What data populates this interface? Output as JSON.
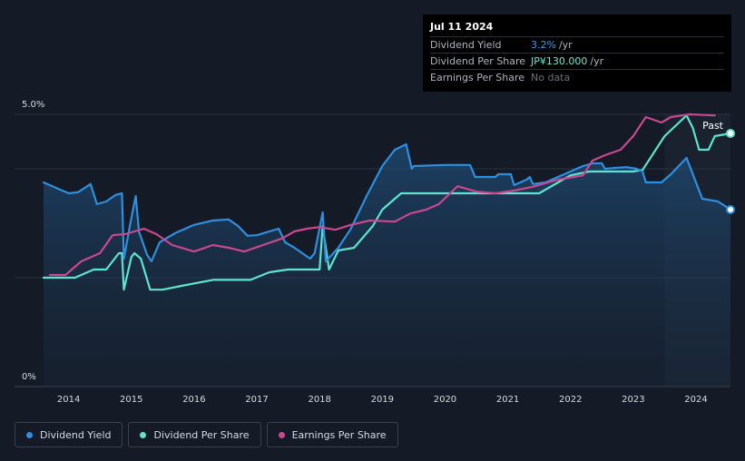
{
  "tooltip": {
    "date": "Jul 11 2024",
    "rows": [
      {
        "label": "Dividend Yield",
        "value": "3.2%",
        "unit": "/yr"
      },
      {
        "label": "Dividend Per Share",
        "value": "JP¥130.000",
        "unit": "/yr"
      },
      {
        "label": "Earnings Per Share",
        "value": "No data",
        "unit": ""
      }
    ]
  },
  "legend": [
    {
      "label": "Dividend Yield",
      "color": "#2e8fe0"
    },
    {
      "label": "Dividend Per Share",
      "color": "#5ee3cf"
    },
    {
      "label": "Earnings Per Share",
      "color": "#c9488f"
    }
  ],
  "chart_data": {
    "type": "line",
    "title": "",
    "xlabel": "",
    "ylabel": "",
    "y_tick_labels": [
      "5.0%",
      "0%"
    ],
    "past_label": "Past",
    "x_ticks": [
      2014,
      2015,
      2016,
      2017,
      2018,
      2019,
      2020,
      2021,
      2022,
      2023,
      2024
    ],
    "xlim": [
      2013.6,
      2024.55
    ],
    "ylim": [
      0,
      5.0
    ],
    "forecast_start": 2023.5,
    "series": [
      {
        "name": "Dividend Yield",
        "color": "#2e8fe0",
        "unit": "%",
        "points": [
          [
            2013.6,
            3.75
          ],
          [
            2013.8,
            3.65
          ],
          [
            2014.0,
            3.55
          ],
          [
            2014.15,
            3.57
          ],
          [
            2014.35,
            3.72
          ],
          [
            2014.45,
            3.35
          ],
          [
            2014.6,
            3.4
          ],
          [
            2014.75,
            3.52
          ],
          [
            2014.85,
            3.55
          ],
          [
            2014.88,
            2.35
          ],
          [
            2015.0,
            3.1
          ],
          [
            2015.07,
            3.5
          ],
          [
            2015.12,
            2.85
          ],
          [
            2015.25,
            2.42
          ],
          [
            2015.32,
            2.3
          ],
          [
            2015.45,
            2.65
          ],
          [
            2015.7,
            2.82
          ],
          [
            2016.0,
            2.97
          ],
          [
            2016.3,
            3.05
          ],
          [
            2016.55,
            3.07
          ],
          [
            2016.7,
            2.95
          ],
          [
            2016.85,
            2.77
          ],
          [
            2017.0,
            2.78
          ],
          [
            2017.2,
            2.85
          ],
          [
            2017.35,
            2.9
          ],
          [
            2017.45,
            2.65
          ],
          [
            2017.6,
            2.55
          ],
          [
            2017.85,
            2.35
          ],
          [
            2017.92,
            2.45
          ],
          [
            2018.05,
            3.2
          ],
          [
            2018.1,
            2.3
          ],
          [
            2018.3,
            2.55
          ],
          [
            2018.5,
            2.9
          ],
          [
            2018.75,
            3.5
          ],
          [
            2019.0,
            4.05
          ],
          [
            2019.2,
            4.35
          ],
          [
            2019.38,
            4.45
          ],
          [
            2019.47,
            4.0
          ],
          [
            2019.5,
            4.05
          ],
          [
            2020.0,
            4.07
          ],
          [
            2020.4,
            4.07
          ],
          [
            2020.48,
            3.85
          ],
          [
            2020.8,
            3.85
          ],
          [
            2020.85,
            3.9
          ],
          [
            2021.05,
            3.9
          ],
          [
            2021.1,
            3.7
          ],
          [
            2021.3,
            3.8
          ],
          [
            2021.35,
            3.85
          ],
          [
            2021.4,
            3.72
          ],
          [
            2021.6,
            3.75
          ],
          [
            2021.9,
            3.9
          ],
          [
            2022.2,
            4.05
          ],
          [
            2022.35,
            4.1
          ],
          [
            2022.5,
            4.1
          ],
          [
            2022.55,
            4.0
          ],
          [
            2022.75,
            4.02
          ],
          [
            2022.9,
            4.03
          ],
          [
            2023.05,
            4.0
          ],
          [
            2023.15,
            3.95
          ],
          [
            2023.2,
            3.75
          ],
          [
            2023.45,
            3.75
          ],
          [
            2023.6,
            3.9
          ],
          [
            2023.85,
            4.2
          ],
          [
            2024.0,
            3.75
          ],
          [
            2024.1,
            3.45
          ],
          [
            2024.35,
            3.4
          ],
          [
            2024.55,
            3.25
          ]
        ]
      },
      {
        "name": "Dividend Per Share",
        "color": "#5ee3cf",
        "unit": "JP¥",
        "points": [
          [
            2013.6,
            2.0
          ],
          [
            2014.1,
            2.0
          ],
          [
            2014.4,
            2.15
          ],
          [
            2014.6,
            2.15
          ],
          [
            2014.8,
            2.45
          ],
          [
            2014.85,
            2.45
          ],
          [
            2014.88,
            1.78
          ],
          [
            2015.0,
            2.38
          ],
          [
            2015.05,
            2.45
          ],
          [
            2015.15,
            2.35
          ],
          [
            2015.3,
            1.78
          ],
          [
            2015.5,
            1.78
          ],
          [
            2015.8,
            1.85
          ],
          [
            2016.3,
            1.96
          ],
          [
            2016.9,
            1.96
          ],
          [
            2017.2,
            2.1
          ],
          [
            2017.5,
            2.15
          ],
          [
            2017.9,
            2.15
          ],
          [
            2018.0,
            2.15
          ],
          [
            2018.05,
            2.95
          ],
          [
            2018.15,
            2.15
          ],
          [
            2018.3,
            2.5
          ],
          [
            2018.55,
            2.55
          ],
          [
            2018.85,
            2.95
          ],
          [
            2019.0,
            3.25
          ],
          [
            2019.2,
            3.45
          ],
          [
            2019.3,
            3.55
          ],
          [
            2019.5,
            3.55
          ],
          [
            2020.0,
            3.55
          ],
          [
            2021.0,
            3.55
          ],
          [
            2021.5,
            3.55
          ],
          [
            2022.0,
            3.88
          ],
          [
            2022.3,
            3.95
          ],
          [
            2022.5,
            3.95
          ],
          [
            2023.0,
            3.95
          ],
          [
            2023.15,
            3.98
          ],
          [
            2023.5,
            4.6
          ],
          [
            2023.85,
            4.98
          ],
          [
            2023.95,
            4.75
          ],
          [
            2024.05,
            4.35
          ],
          [
            2024.2,
            4.35
          ],
          [
            2024.3,
            4.6
          ],
          [
            2024.55,
            4.65
          ]
        ]
      },
      {
        "name": "Earnings Per Share",
        "color": "#c9488f",
        "unit": "JP¥",
        "points": [
          [
            2013.7,
            2.05
          ],
          [
            2013.95,
            2.05
          ],
          [
            2014.2,
            2.3
          ],
          [
            2014.5,
            2.45
          ],
          [
            2014.7,
            2.78
          ],
          [
            2014.9,
            2.8
          ],
          [
            2015.2,
            2.9
          ],
          [
            2015.4,
            2.8
          ],
          [
            2015.65,
            2.6
          ],
          [
            2016.0,
            2.48
          ],
          [
            2016.3,
            2.6
          ],
          [
            2016.55,
            2.55
          ],
          [
            2016.8,
            2.48
          ],
          [
            2017.1,
            2.6
          ],
          [
            2017.4,
            2.72
          ],
          [
            2017.6,
            2.85
          ],
          [
            2017.8,
            2.9
          ],
          [
            2018.0,
            2.93
          ],
          [
            2018.25,
            2.88
          ],
          [
            2018.5,
            2.97
          ],
          [
            2018.8,
            3.05
          ],
          [
            2019.2,
            3.03
          ],
          [
            2019.45,
            3.18
          ],
          [
            2019.7,
            3.25
          ],
          [
            2019.9,
            3.35
          ],
          [
            2020.2,
            3.68
          ],
          [
            2020.5,
            3.58
          ],
          [
            2020.8,
            3.55
          ],
          [
            2021.1,
            3.6
          ],
          [
            2021.4,
            3.67
          ],
          [
            2021.8,
            3.8
          ],
          [
            2022.2,
            3.88
          ],
          [
            2022.35,
            4.15
          ],
          [
            2022.55,
            4.25
          ],
          [
            2022.8,
            4.35
          ],
          [
            2023.0,
            4.6
          ],
          [
            2023.2,
            4.95
          ],
          [
            2023.45,
            4.85
          ],
          [
            2023.6,
            4.95
          ],
          [
            2023.9,
            5.0
          ],
          [
            2024.3,
            4.98
          ]
        ]
      }
    ]
  }
}
